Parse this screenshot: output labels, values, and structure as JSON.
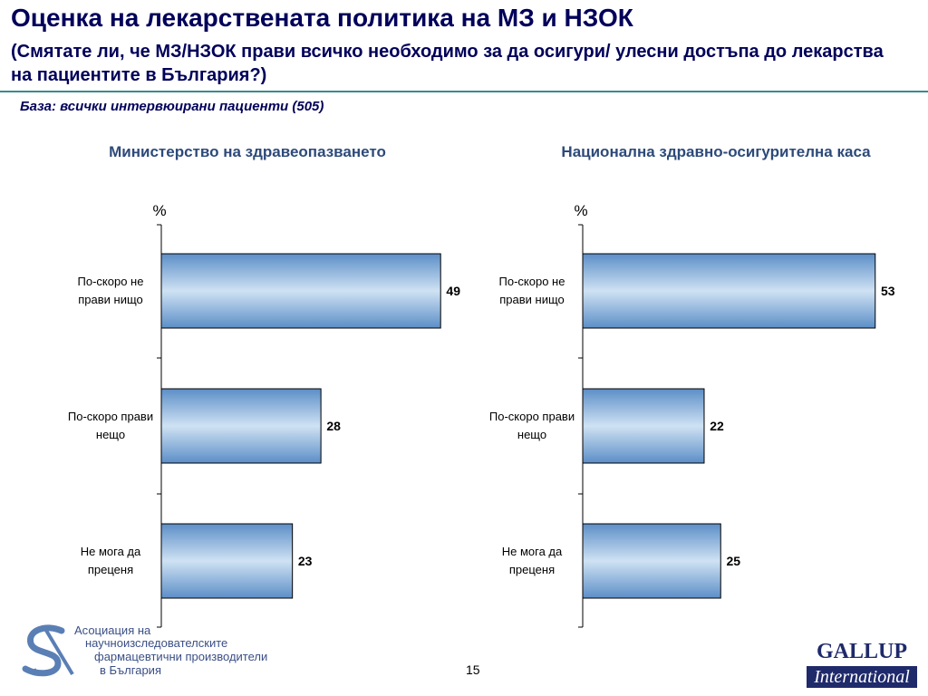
{
  "title": "Оценка на лекарствената политика на МЗ и НЗОК",
  "subtitle": "(Смятате ли, че МЗ/НЗОК прави всичко необходимо за да осигури/ улесни достъпа до лекарства на пациентите в България?)",
  "base_note": "База: всички интервюирани пациенти (505)",
  "page_number": "15",
  "footer": {
    "association_lines": [
      "Асоциация на",
      "научноизследователските",
      "фармацевтични производители",
      "в България"
    ],
    "gallup_top": "GALLUP",
    "gallup_bottom": "International"
  },
  "colors": {
    "title": "#00005a",
    "bar_light": "#cfe2f3",
    "bar_dark": "#5c8ec7",
    "bar_stroke": "#000000"
  },
  "chart_data": [
    {
      "type": "bar",
      "orientation": "horizontal",
      "title": "Министерство на здравеопазването",
      "unit": "%",
      "categories": [
        [
          "По-скоро не",
          "прави нищо"
        ],
        [
          "По-скоро прави",
          "нещо"
        ],
        [
          "Не мога да",
          "преценя"
        ]
      ],
      "values": [
        49,
        28,
        23
      ]
    },
    {
      "type": "bar",
      "orientation": "horizontal",
      "title": "Национална здравно-осигурителна каса",
      "unit": "%",
      "categories": [
        [
          "По-скоро не",
          "прави нищо"
        ],
        [
          "По-скоро прави",
          "нещо"
        ],
        [
          "Не мога да",
          "преценя"
        ]
      ],
      "values": [
        53,
        22,
        25
      ]
    }
  ]
}
